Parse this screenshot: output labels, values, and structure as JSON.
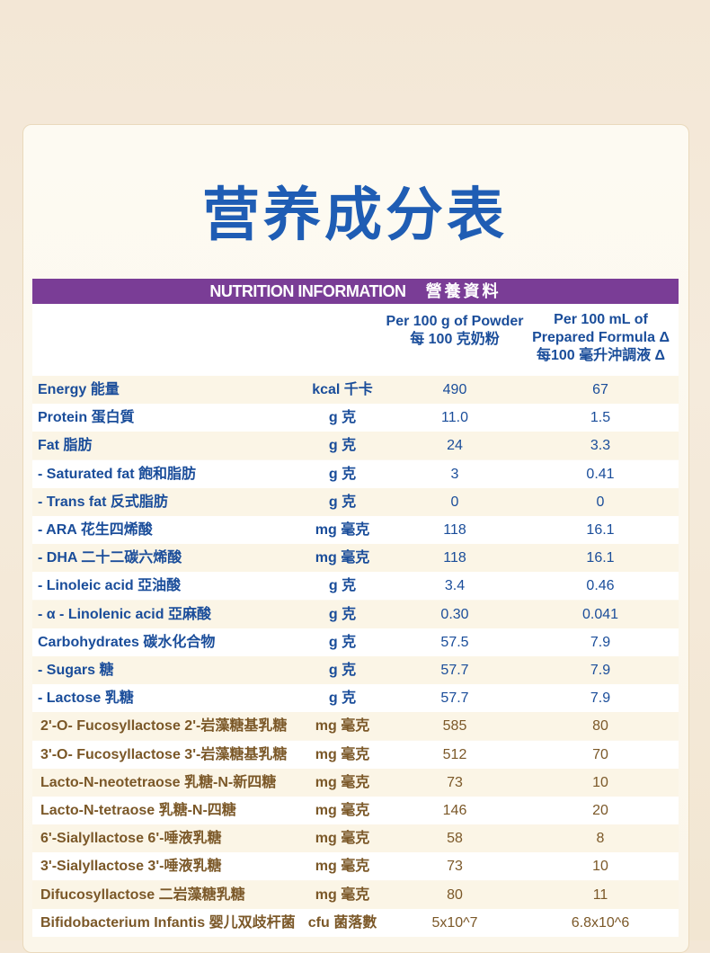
{
  "title": "营养成分表",
  "table": {
    "banner": [
      "NUTRITION INFORMATION",
      "營養資料"
    ],
    "columns": [
      {
        "en": "Per 100 g of Powder",
        "zh": "每 100 克奶粉"
      },
      {
        "en": "Per 100 mL of Prepared Formula Δ",
        "zh": "每100 毫升沖調液 Δ"
      }
    ],
    "rows": [
      [
        "Energy 能量",
        "kcal 千卡",
        "490",
        "67"
      ],
      [
        "Protein 蛋白質",
        "g 克",
        "11.0",
        "1.5"
      ],
      [
        "Fat 脂肪",
        "g 克",
        "24",
        "3.3"
      ],
      [
        "- Saturated fat 飽和脂肪",
        "g 克",
        "3",
        "0.41"
      ],
      [
        "- Trans fat 反式脂肪",
        "g 克",
        "0",
        "0"
      ],
      [
        "- ARA 花生四烯酸",
        "mg 毫克",
        "118",
        "16.1"
      ],
      [
        "- DHA 二十二碳六烯酸",
        "mg 毫克",
        "118",
        "16.1"
      ],
      [
        "- Linoleic acid 亞油酸",
        "g 克",
        "3.4",
        "0.46"
      ],
      [
        "- α - Linolenic acid 亞麻酸",
        "g 克",
        "0.30",
        "0.041"
      ],
      [
        "Carbohydrates 碳水化合物",
        "g 克",
        "57.5",
        "7.9"
      ],
      [
        "- Sugars 糖",
        "g 克",
        "57.7",
        "7.9"
      ],
      [
        "- Lactose 乳糖",
        "g 克",
        "57.7",
        "7.9"
      ],
      [
        "2'-O- Fucosyllactose 2'-岩藻糖基乳糖",
        "mg 毫克",
        "585",
        "80"
      ],
      [
        "3'-O- Fucosyllactose 3'-岩藻糖基乳糖",
        "mg 毫克",
        "512",
        "70"
      ],
      [
        "Lacto-N-neotetraose 乳糖-N-新四糖",
        "mg 毫克",
        "73",
        "10"
      ],
      [
        "Lacto-N-tetraose 乳糖-N-四糖",
        "mg 毫克",
        "146",
        "20"
      ],
      [
        "6'-Sialyllactose 6'-唾液乳糖",
        "mg 毫克",
        "58",
        "8"
      ],
      [
        "3'-Sialyllactose 3'-唾液乳糖",
        "mg 毫克",
        "73",
        "10"
      ],
      [
        "Difucosyllactose 二岩藻糖乳糖",
        "mg 毫克",
        "80",
        "11"
      ],
      [
        "Bifidobacterium Infantis 婴儿双歧杆菌",
        "cfu 菌落數",
        "5x10^7",
        "6.8x10^6"
      ]
    ]
  }
}
